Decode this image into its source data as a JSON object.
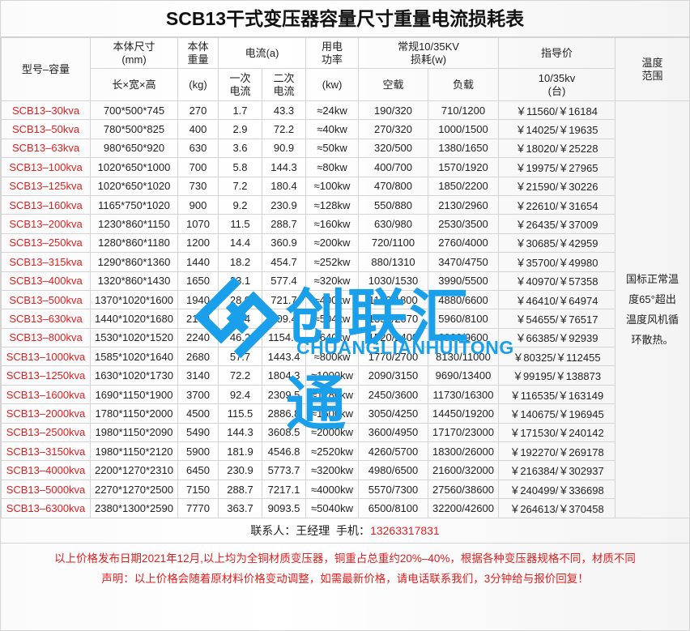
{
  "title": "SCB13干式变压器容量尺寸重量电流损耗表",
  "headers": {
    "model": "型号–容量",
    "dims": "本体尺寸\n(mm)",
    "dims_sub": "长×宽×高",
    "weight": "本体\n重量",
    "weight_sub": "(kg)",
    "current": "电流(a)",
    "i1": "一次\n电流",
    "i2": "二次\n电流",
    "power": "用电\n功率",
    "power_sub": "(kw)",
    "loss": "常规10/35KV\n损耗(w)",
    "noload": "空载",
    "load": "负载",
    "price": "指导价",
    "price_sub": "10/35kv\n(台)",
    "temp": "温度\n范围"
  },
  "rows": [
    [
      "SCB13–30kva",
      "700*500*745",
      "270",
      "1.7",
      "43.3",
      "≈24kw",
      "190/320",
      "710/1200",
      "￥11560/￥16184"
    ],
    [
      "SCB13–50kva",
      "780*500*825",
      "400",
      "2.9",
      "72.2",
      "≈40kw",
      "270/320",
      "1000/1500",
      "￥14025/￥19635"
    ],
    [
      "SCB13–63kva",
      "980*650*920",
      "630",
      "3.6",
      "90.9",
      "≈50kw",
      "320/500",
      "1380/1650",
      "￥18020/￥25228"
    ],
    [
      "SCB13–100kva",
      "1020*650*1000",
      "700",
      "5.8",
      "144.3",
      "≈80kw",
      "400/700",
      "1570/1920",
      "￥19975/￥27965"
    ],
    [
      "SCB13–125kva",
      "1020*650*1020",
      "730",
      "7.2",
      "180.4",
      "≈100kw",
      "470/800",
      "1850/2200",
      "￥21590/￥30226"
    ],
    [
      "SCB13–160kva",
      "1165*750*1020",
      "900",
      "9.2",
      "230.9",
      "≈128kw",
      "550/880",
      "2130/2960",
      "￥22610/￥31654"
    ],
    [
      "SCB13–200kva",
      "1230*860*1150",
      "1070",
      "11.5",
      "288.7",
      "≈160kw",
      "630/980",
      "2530/3500",
      "￥26435/￥37009"
    ],
    [
      "SCB13–250kva",
      "1280*860*1180",
      "1200",
      "14.4",
      "360.9",
      "≈200kw",
      "720/1100",
      "2760/4000",
      "￥30685/￥42959"
    ],
    [
      "SCB13–315kva",
      "1290*860*1360",
      "1440",
      "18.2",
      "454.7",
      "≈252kw",
      "880/1310",
      "3470/4750",
      "￥35700/￥49980"
    ],
    [
      "SCB13–400kva",
      "1320*860*1430",
      "1650",
      "23.1",
      "577.4",
      "≈320kw",
      "1030/1530",
      "3990/5500",
      "￥40970/￥57358"
    ],
    [
      "SCB13–500kva",
      "1370*1020*1600",
      "1940",
      "28.9",
      "721.7",
      "≈400kw",
      "1160/1800",
      "4880/6600",
      "￥46410/￥64974"
    ],
    [
      "SCB13–630kva",
      "1440*1020*1680",
      "2100",
      "36.4",
      "909.4",
      "≈504kw",
      "1350/2070",
      "5960/8100",
      "￥54655/￥76517"
    ],
    [
      "SCB13–800kva",
      "1530*1020*1520",
      "2240",
      "46.2",
      "1154.7",
      "≈640kw",
      "1520/2400",
      "6960/9600",
      "￥66385/￥92939"
    ],
    [
      "SCB13–1000kva",
      "1585*1020*1640",
      "2680",
      "57.7",
      "1443.4",
      "≈800kw",
      "1770/2700",
      "8130/11000",
      "￥80325/￥112455"
    ],
    [
      "SCB13–1250kva",
      "1630*1020*1730",
      "3140",
      "72.2",
      "1804.3",
      "≈1000kw",
      "2090/3150",
      "9690/13400",
      "￥99195/￥138873"
    ],
    [
      "SCB13–1600kva",
      "1690*1150*1900",
      "3700",
      "92.4",
      "2309.5",
      "≈1280kw",
      "2450/3600",
      "11730/16300",
      "￥116535/￥163149"
    ],
    [
      "SCB13–2000kva",
      "1780*1150*2000",
      "4500",
      "115.5",
      "2886.8",
      "≈1600kw",
      "3050/4250",
      "14450/19200",
      "￥140675/￥196945"
    ],
    [
      "SCB13–2500kva",
      "1980*1150*2090",
      "5490",
      "144.3",
      "3608.5",
      "≈2000kw",
      "3600/4950",
      "17170/23000",
      "￥171530/￥240142"
    ],
    [
      "SCB13–3150kva",
      "1980*1150*2120",
      "5900",
      "181.9",
      "4546.8",
      "≈2520kw",
      "4260/5700",
      "18300/26000",
      "￥192270/￥269178"
    ],
    [
      "SCB13–4000kva",
      "2200*1270*2310",
      "6450",
      "230.9",
      "5773.7",
      "≈3200kw",
      "4980/6500",
      "21600/32000",
      "￥216384/￥302937"
    ],
    [
      "SCB13–5000kva",
      "2270*1270*2500",
      "7150",
      "288.7",
      "7217.1",
      "≈4000kw",
      "5570/7300",
      "27560/38600",
      "￥240499/￥336698"
    ],
    [
      "SCB13–6300kva",
      "2380*1300*2590",
      "7770",
      "363.7",
      "9093.5",
      "≈5040kw",
      "6500/8100",
      "32200/42600",
      "￥264613/￥370458"
    ]
  ],
  "temp_note": "国标正常温度65°超出温度风机循环散热。",
  "contact": {
    "label": "联系人：王经理  手机：",
    "phone": "13263317831"
  },
  "footer": {
    "line1": "以上价格发布日期2021年12月,以上均为全铜材质变压器，铜重占总重约20%–40%，根据各种变压器规格不同，材质不同",
    "line2": "声明：以上价格会随着原材料价格变动调整，如需最新价格，请电话联系我们，3分钟给与报价回复！"
  },
  "watermark": {
    "cn": "创联汇通",
    "en": "CHUANGLIANHUITONG",
    "color": "#1aa0ea"
  },
  "colors": {
    "accent_red": "#e02020"
  }
}
